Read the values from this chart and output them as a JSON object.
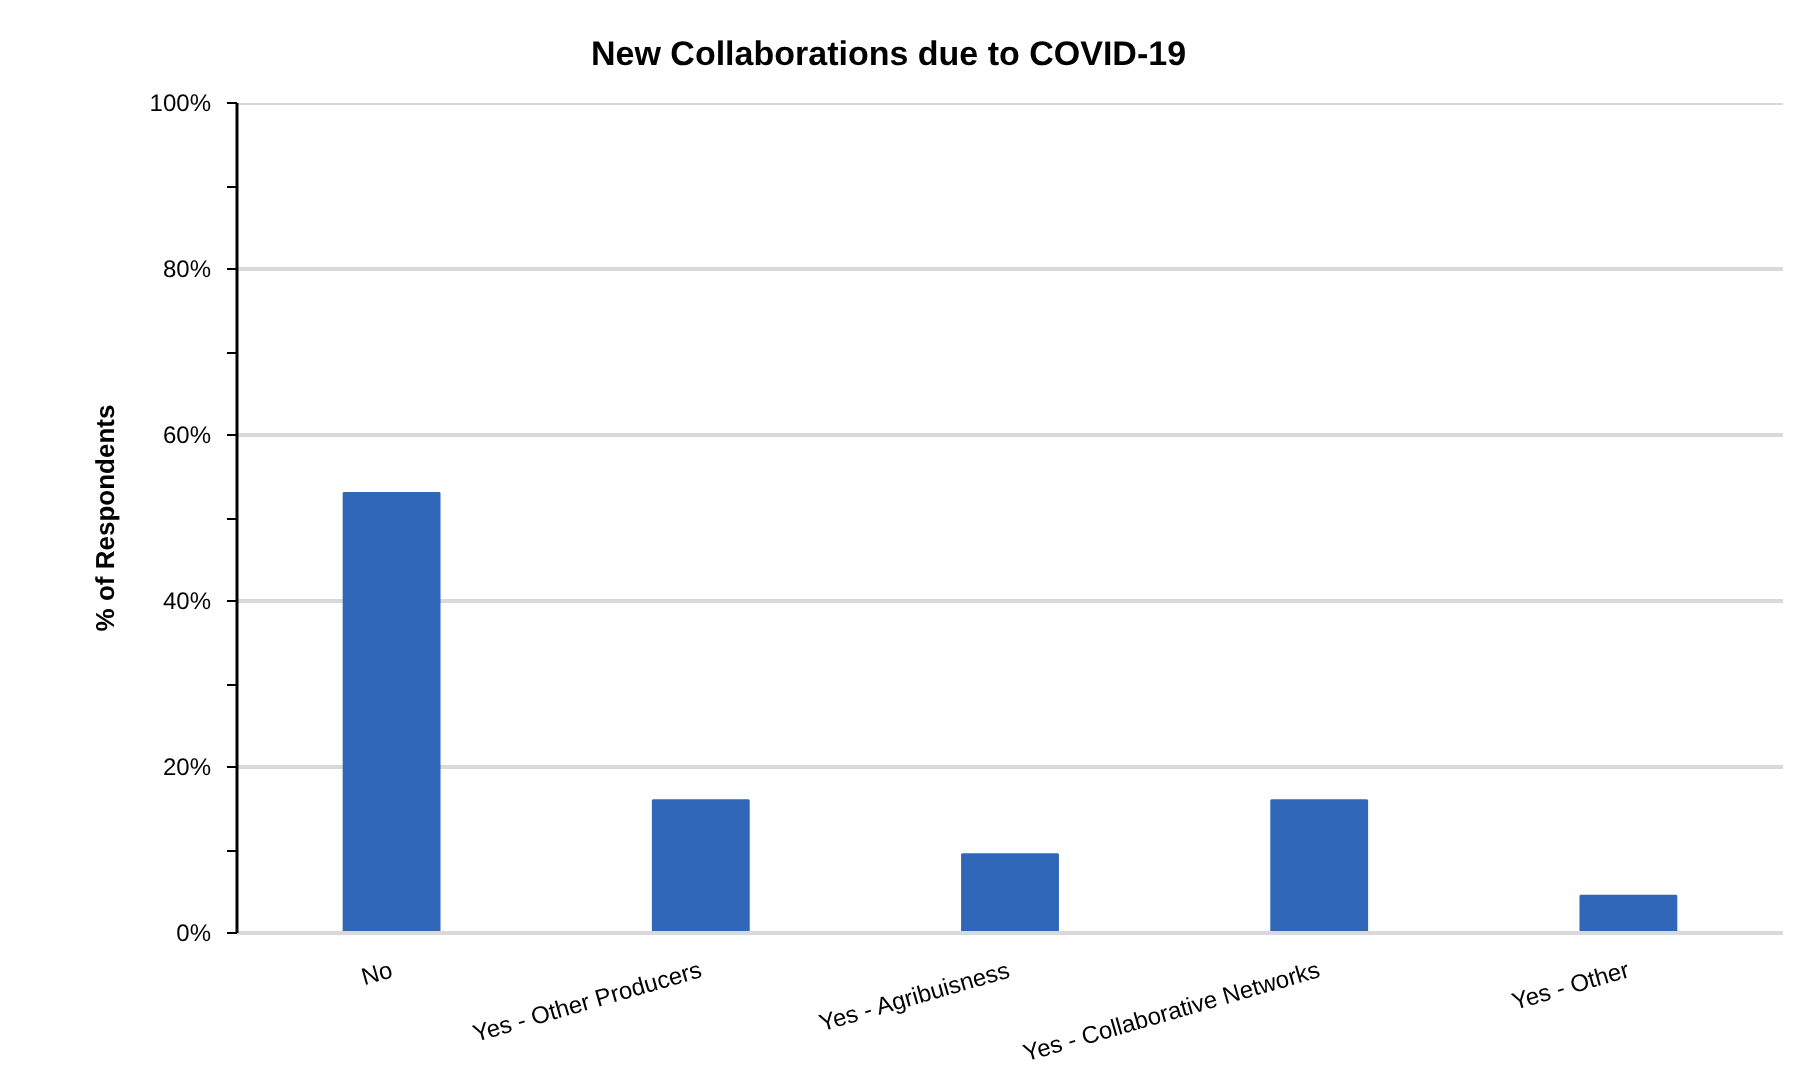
{
  "chart_data": {
    "type": "bar",
    "title": "New Collaborations due to COVID-19",
    "ylabel": "% of Respondents",
    "categories": [
      "No",
      "Yes - Other Producers",
      "Yes - Agribuisness",
      "Yes - Collaborative Networks",
      "Yes - Other"
    ],
    "values": [
      53,
      16,
      9.5,
      16,
      4.5
    ],
    "color": "#3067b8",
    "ylim": [
      0,
      100
    ],
    "yticks": [
      {
        "value": 0,
        "label": "0%"
      },
      {
        "value": 10,
        "label": null
      },
      {
        "value": 20,
        "label": "20%"
      },
      {
        "value": 30,
        "label": null
      },
      {
        "value": 40,
        "label": "40%"
      },
      {
        "value": 50,
        "label": null
      },
      {
        "value": 60,
        "label": "60%"
      },
      {
        "value": 70,
        "label": null
      },
      {
        "value": 80,
        "label": "80%"
      },
      {
        "value": 90,
        "label": null
      },
      {
        "value": 100,
        "label": "100%"
      }
    ],
    "grid": "y"
  }
}
